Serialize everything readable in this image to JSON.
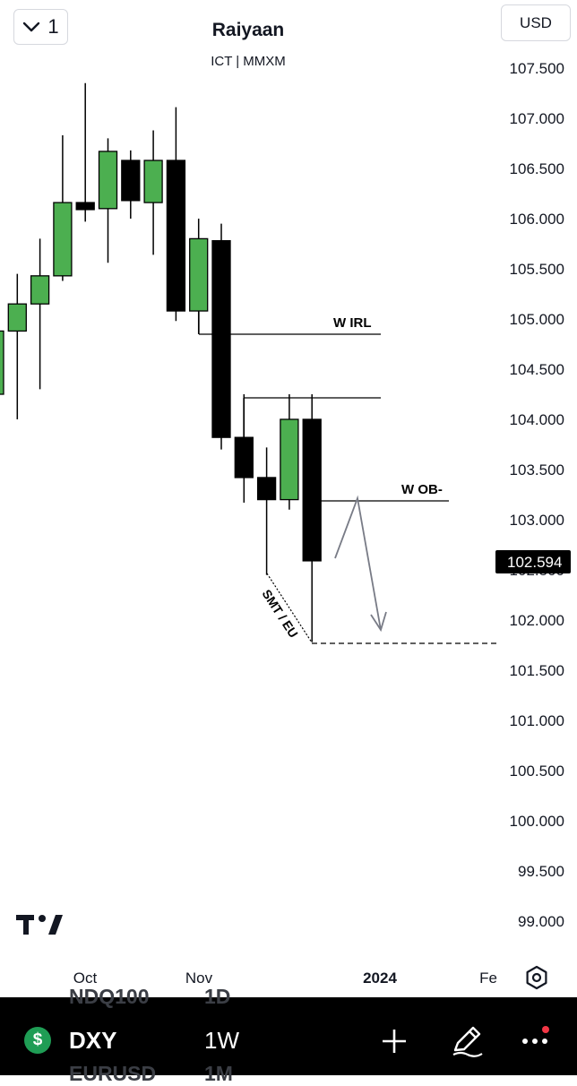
{
  "header": {
    "layout_count": "1",
    "title": "Raiyaan",
    "subtitle": "ICT | MMXM",
    "currency": "USD"
  },
  "toolbar": {
    "ghost_above": "NDQ100",
    "ghost_above_interval": "1D",
    "ghost_below": "EURUSD",
    "ghost_below_interval": "1M",
    "symbol": "DXY",
    "symbol_icon_glyph": "$",
    "interval": "1W"
  },
  "chart_data": {
    "type": "candlestick",
    "symbol": "DXY",
    "interval": "1W",
    "y_axis": {
      "ticks": [
        "107.500",
        "107.000",
        "106.500",
        "106.000",
        "105.500",
        "105.000",
        "104.500",
        "104.000",
        "103.500",
        "103.000",
        "102.500",
        "102.000",
        "101.500",
        "101.000",
        "100.500",
        "100.000",
        "99.500",
        "99.000"
      ],
      "range": [
        98.6,
        108.0
      ]
    },
    "x_axis": {
      "ticks": [
        {
          "label": "Oct",
          "bold": false
        },
        {
          "label": "Nov",
          "bold": false
        },
        {
          "label": "2024",
          "bold": true
        },
        {
          "label": "Fe",
          "bold": false
        }
      ]
    },
    "last_price": {
      "label": "102.594",
      "value": 102.594
    },
    "candles": [
      {
        "open": 104.25,
        "high": 105.2,
        "low": 103.82,
        "close": 104.88
      },
      {
        "open": 104.88,
        "high": 105.45,
        "low": 104.0,
        "close": 105.15
      },
      {
        "open": 105.15,
        "high": 105.8,
        "low": 104.3,
        "close": 105.43
      },
      {
        "open": 105.43,
        "high": 106.83,
        "low": 105.38,
        "close": 106.16
      },
      {
        "open": 106.16,
        "high": 107.35,
        "low": 105.97,
        "close": 106.09
      },
      {
        "open": 106.1,
        "high": 106.8,
        "low": 105.56,
        "close": 106.67
      },
      {
        "open": 106.58,
        "high": 106.68,
        "low": 106.0,
        "close": 106.18
      },
      {
        "open": 106.16,
        "high": 106.88,
        "low": 105.64,
        "close": 106.58
      },
      {
        "open": 106.58,
        "high": 107.11,
        "low": 104.98,
        "close": 105.08
      },
      {
        "open": 105.08,
        "high": 106.0,
        "low": 104.85,
        "close": 105.8
      },
      {
        "open": 105.78,
        "high": 105.95,
        "low": 103.7,
        "close": 103.82
      },
      {
        "open": 103.82,
        "high": 104.25,
        "low": 103.17,
        "close": 103.42
      },
      {
        "open": 103.42,
        "high": 103.72,
        "low": 102.45,
        "close": 103.2
      },
      {
        "open": 103.2,
        "high": 104.25,
        "low": 103.1,
        "close": 104.0
      },
      {
        "open": 104.0,
        "high": 104.25,
        "low": 101.78,
        "close": 102.59
      }
    ],
    "annotations": [
      {
        "text": "W IRL",
        "level": 104.85
      },
      {
        "text": "W OB-",
        "level": 103.2
      },
      {
        "text": "SMT / EU"
      }
    ]
  }
}
